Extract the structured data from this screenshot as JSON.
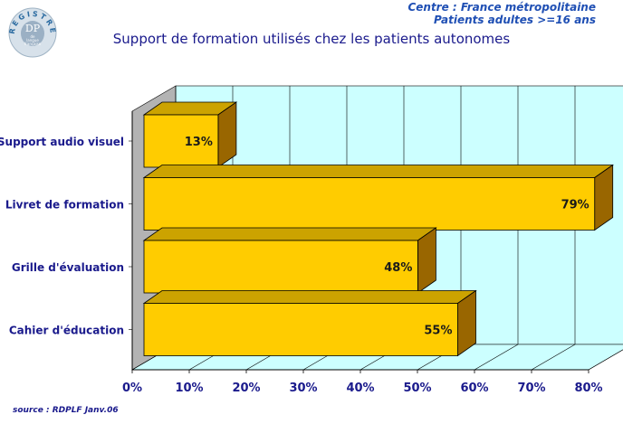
{
  "header": {
    "centre": "Centre : France métropolitaine",
    "patients": "Patients adultes >=16 ans"
  },
  "logo": {
    "ring_text": "REGISTRE",
    "center_text": "DP",
    "sub_text_1": "de",
    "sub_text_2": "langue",
    "sub_text_3": "française"
  },
  "source": "source : RDPLF  Janv.06",
  "colors": {
    "bar_front": "#ffcc00",
    "bar_top": "#cca300",
    "bar_side": "#996600",
    "plot_back": "#ccffff",
    "wall_side": "#b3b3b3",
    "floor": "#ccffff",
    "text": "#1a1a8c"
  },
  "chart_data": {
    "type": "bar",
    "orientation": "horizontal",
    "three_d": true,
    "title": "Support de formation utilisés chez les patients autonomes",
    "categories": [
      "Support audio visuel",
      "Livret de formation",
      "Grille d'évaluation",
      "Cahier d'éducation"
    ],
    "values": [
      13,
      79,
      48,
      55
    ],
    "value_labels": [
      "13%",
      "79%",
      "48%",
      "55%"
    ],
    "xlim": [
      0,
      80
    ],
    "x_ticks": [
      0,
      10,
      20,
      30,
      40,
      50,
      60,
      70,
      80
    ],
    "x_tick_labels": [
      "0%",
      "10%",
      "20%",
      "30%",
      "40%",
      "50%",
      "60%",
      "70%",
      "80%"
    ],
    "grid": true,
    "legend": "none"
  }
}
